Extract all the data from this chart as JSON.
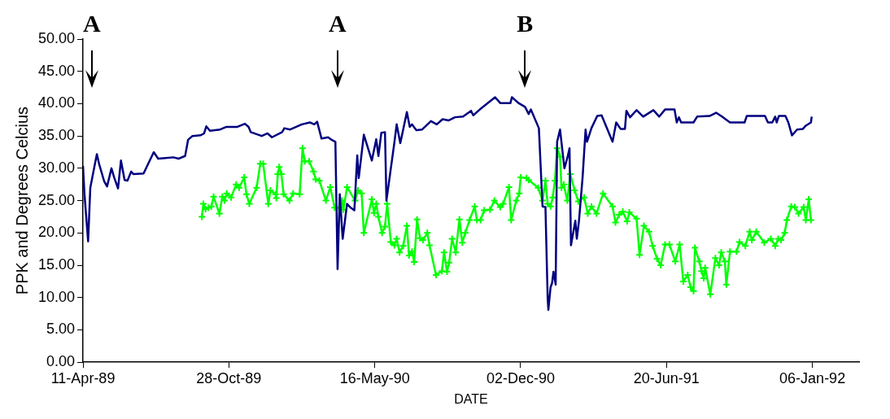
{
  "chart_data": {
    "type": "line",
    "xlabel": "DATE",
    "ylabel": "PPK and Degrees Celcius",
    "xlim": [
      "1989-04-11",
      "1992-03-10"
    ],
    "xticks": [
      {
        "value": "1989-04-11",
        "label": "11-Apr-89"
      },
      {
        "value": "1989-10-28",
        "label": "28-Oct-89"
      },
      {
        "value": "1990-05-16",
        "label": "16-May-90"
      },
      {
        "value": "1990-12-02",
        "label": "02-Dec-90"
      },
      {
        "value": "1991-06-20",
        "label": "20-Jun-91"
      },
      {
        "value": "1992-01-06",
        "label": "06-Jan-92"
      }
    ],
    "ylim": [
      0,
      50
    ],
    "yticks": [
      {
        "value": 0,
        "label": "0.00"
      },
      {
        "value": 5,
        "label": "5.00"
      },
      {
        "value": 10,
        "label": "10.00"
      },
      {
        "value": 15,
        "label": "15.00"
      },
      {
        "value": 20,
        "label": "20.00"
      },
      {
        "value": 25,
        "label": "25.00"
      },
      {
        "value": 30,
        "label": "30.00"
      },
      {
        "value": 35,
        "label": "35.00"
      },
      {
        "value": 40,
        "label": "40.00"
      },
      {
        "value": 45,
        "label": "45.00"
      },
      {
        "value": 50,
        "label": "50.00"
      }
    ],
    "legend": false,
    "grid": false,
    "ref_lines": [
      {
        "axis": "x",
        "value": "1989-04-23",
        "label": "A",
        "color": "#000000"
      },
      {
        "axis": "x",
        "value": "1990-03-26",
        "label": "A",
        "color": "#000000"
      },
      {
        "axis": "x",
        "value": "1990-12-08",
        "label": "B",
        "color": "#000000"
      }
    ],
    "series": [
      {
        "color": "#000080",
        "marker": "none",
        "x": [
          "1989-04-11",
          "1989-04-13",
          "1989-04-18",
          "1989-04-21",
          "1989-04-27",
          "1989-04-30",
          "1989-05-03",
          "1989-05-10",
          "1989-05-14",
          "1989-05-20",
          "1989-05-24",
          "1989-05-29",
          "1989-06-02",
          "1989-06-07",
          "1989-06-11",
          "1989-06-16",
          "1989-06-19",
          "1989-07-03",
          "1989-07-17",
          "1989-07-23",
          "1989-08-02",
          "1989-08-13",
          "1989-08-20",
          "1989-08-29",
          "1989-09-02",
          "1989-09-08",
          "1989-09-19",
          "1989-09-24",
          "1989-09-27",
          "1989-10-02",
          "1989-10-16",
          "1989-10-24",
          "1989-11-08",
          "1989-11-19",
          "1989-11-24",
          "1989-11-27",
          "1989-12-12",
          "1989-12-20",
          "1989-12-26",
          "1990-01-09",
          "1990-01-12",
          "1990-01-20",
          "1990-02-05",
          "1990-02-16",
          "1990-02-22",
          "1990-02-26",
          "1990-03-04",
          "1990-03-13",
          "1990-03-18",
          "1990-03-23",
          "1990-03-26",
          "1990-03-29",
          "1990-04-02",
          "1990-04-08",
          "1990-04-13",
          "1990-04-18",
          "1990-04-22",
          "1990-04-24",
          "1990-05-01",
          "1990-05-12",
          "1990-05-18",
          "1990-05-21",
          "1990-05-25",
          "1990-05-30",
          "1990-06-01",
          "1990-06-12",
          "1990-06-15",
          "1990-06-20",
          "1990-06-29",
          "1990-07-03",
          "1990-07-06",
          "1990-07-12",
          "1990-07-20",
          "1990-08-01",
          "1990-08-09",
          "1990-08-17",
          "1990-08-25",
          "1990-09-03",
          "1990-09-14",
          "1990-09-25",
          "1990-09-28",
          "1990-10-07",
          "1990-10-28",
          "1990-11-04",
          "1990-11-18",
          "1990-11-20",
          "1990-11-29",
          "1990-12-08",
          "1990-12-13",
          "1990-12-16",
          "1990-12-27",
          "1991-01-01",
          "1991-01-05",
          "1991-01-08",
          "1991-01-09",
          "1991-01-12",
          "1991-01-14",
          "1991-01-16",
          "1991-01-19",
          "1991-01-21",
          "1991-01-25",
          "1991-01-31",
          "1991-02-04",
          "1991-02-07",
          "1991-02-09",
          "1991-02-15",
          "1991-02-17",
          "1991-02-20",
          "1991-02-25",
          "1991-03-01",
          "1991-03-03",
          "1991-03-09",
          "1991-03-17",
          "1991-03-23",
          "1991-04-07",
          "1991-04-12",
          "1991-04-18",
          "1991-04-24",
          "1991-04-26",
          "1991-05-01",
          "1991-05-10",
          "1991-05-19",
          "1991-06-02",
          "1991-06-10",
          "1991-06-18",
          "1991-07-01",
          "1991-07-04",
          "1991-07-07",
          "1991-07-10",
          "1991-07-27",
          "1991-08-01",
          "1991-08-18",
          "1991-08-27",
          "1991-09-04",
          "1991-09-15",
          "1991-10-05",
          "1991-10-08",
          "1991-11-02",
          "1991-11-06",
          "1991-11-12",
          "1991-11-16",
          "1991-11-18",
          "1991-11-21",
          "1991-11-30",
          "1991-12-04",
          "1991-12-09",
          "1991-12-16",
          "1991-12-24",
          "1991-12-28",
          "1992-01-04",
          "1992-01-05"
        ],
        "values": [
          30.4,
          26,
          18.7,
          27,
          30.5,
          32.2,
          30.7,
          28,
          27.2,
          30,
          28.5,
          26.9,
          31.2,
          28.2,
          28.1,
          29.5,
          29.1,
          29.2,
          32.5,
          31.5,
          31.6,
          31.7,
          31.5,
          31.9,
          34.4,
          35,
          35.1,
          35.4,
          36.5,
          35.8,
          36,
          36.4,
          36.4,
          36.9,
          36.4,
          35.6,
          35,
          35.4,
          34.8,
          35.6,
          36.2,
          36,
          36.8,
          37.1,
          36.8,
          37.2,
          34.6,
          34.8,
          34.4,
          34.1,
          14.4,
          26,
          19.1,
          24.5,
          23.9,
          23.5,
          32,
          28.5,
          35.2,
          31.2,
          34.5,
          31.9,
          35.5,
          35.6,
          25,
          34.1,
          36.8,
          33.9,
          38.7,
          36.4,
          36.8,
          35.9,
          36,
          37.3,
          36.8,
          37.6,
          37.4,
          37.9,
          38,
          38.9,
          38.2,
          39.1,
          41,
          40.1,
          40.1,
          41,
          40.1,
          39.5,
          38.4,
          39.1,
          36.2,
          24.1,
          24,
          10,
          8.1,
          11.6,
          12.2,
          14,
          12,
          34.1,
          36,
          30,
          31.6,
          33.1,
          18.1,
          21.9,
          19.1,
          21.9,
          28.7,
          36,
          34.1,
          36.2,
          38.1,
          38.2,
          34.1,
          37.1,
          36.1,
          36.1,
          38.9,
          37.9,
          39,
          38,
          39,
          38,
          39.1,
          39.1,
          37.1,
          37.9,
          37.1,
          37.1,
          38,
          38.1,
          38.6,
          38,
          37.1,
          37.1,
          38.1,
          38.1,
          37.1,
          37.1,
          38,
          37.1,
          38.1,
          38.1,
          37.1,
          35.1,
          36,
          36.1,
          36.6,
          37.1,
          38
        ]
      },
      {
        "color": "#00ff00",
        "marker": "cross",
        "x": [
          "1989-09-21",
          "1989-09-23",
          "1989-09-26",
          "1989-09-30",
          "1989-10-04",
          "1989-10-07",
          "1989-10-15",
          "1989-10-19",
          "1989-10-22",
          "1989-10-25",
          "1989-10-31",
          "1989-11-07",
          "1989-11-11",
          "1989-11-18",
          "1989-11-21",
          "1989-11-25",
          "1989-12-05",
          "1989-12-10",
          "1989-12-14",
          "1989-12-21",
          "1989-12-24",
          "1989-12-31",
          "1990-01-01",
          "1990-01-03",
          "1990-01-05",
          "1990-01-08",
          "1990-01-11",
          "1990-01-19",
          "1990-01-24",
          "1990-02-02",
          "1990-02-06",
          "1990-02-09",
          "1990-02-15",
          "1990-02-21",
          "1990-02-24",
          "1990-03-01",
          "1990-03-10",
          "1990-03-16",
          "1990-03-22",
          "1990-03-28",
          "1990-04-01",
          "1990-04-03",
          "1990-04-08",
          "1990-04-19",
          "1990-04-23",
          "1990-04-28",
          "1990-05-01",
          "1990-05-12",
          "1990-05-15",
          "1990-05-18",
          "1990-05-21",
          "1990-05-26",
          "1990-05-30",
          "1990-06-02",
          "1990-06-07",
          "1990-06-12",
          "1990-06-15",
          "1990-06-19",
          "1990-06-24",
          "1990-06-29",
          "1990-07-02",
          "1990-07-06",
          "1990-07-09",
          "1990-07-13",
          "1990-07-17",
          "1990-07-21",
          "1990-07-27",
          "1990-07-30",
          "1990-08-08",
          "1990-08-16",
          "1990-08-19",
          "1990-08-23",
          "1990-08-26",
          "1990-08-30",
          "1990-09-04",
          "1990-09-09",
          "1990-09-13",
          "1990-09-17",
          "1990-09-23",
          "1990-09-30",
          "1990-10-03",
          "1990-10-08",
          "1990-10-13",
          "1990-10-21",
          "1990-10-27",
          "1990-11-04",
          "1990-11-08",
          "1990-11-16",
          "1990-11-19",
          "1990-11-26",
          "1990-11-30",
          "1990-12-02",
          "1990-12-10",
          "1990-12-13",
          "1990-12-26",
          "1991-01-01",
          "1991-01-05",
          "1991-01-08",
          "1991-01-12",
          "1991-01-15",
          "1991-01-18",
          "1991-01-21",
          "1991-01-25",
          "1991-01-27",
          "1991-01-30",
          "1991-02-04",
          "1991-02-08",
          "1991-02-14",
          "1991-02-19",
          "1991-02-27",
          "1991-03-04",
          "1991-03-09",
          "1991-03-16",
          "1991-03-25",
          "1991-04-07",
          "1991-04-11",
          "1991-04-16",
          "1991-04-21",
          "1991-04-27",
          "1991-04-30",
          "1991-05-10",
          "1991-05-14",
          "1991-05-20",
          "1991-05-27",
          "1991-06-01",
          "1991-06-07",
          "1991-06-12",
          "1991-06-18",
          "1991-06-24",
          "1991-07-02",
          "1991-07-08",
          "1991-07-13",
          "1991-07-19",
          "1991-07-23",
          "1991-07-27",
          "1991-07-29",
          "1991-08-04",
          "1991-08-07",
          "1991-08-10",
          "1991-08-12",
          "1991-08-19",
          "1991-08-26",
          "1991-08-31",
          "1991-09-03",
          "1991-09-08",
          "1991-09-10",
          "1991-09-15",
          "1991-09-24",
          "1991-09-28",
          "1991-10-06",
          "1991-10-12",
          "1991-10-15",
          "1991-10-21",
          "1991-11-01",
          "1991-11-10",
          "1991-11-16",
          "1991-11-20",
          "1991-11-24",
          "1991-11-29",
          "1991-12-02",
          "1991-12-08",
          "1991-12-13",
          "1991-12-18",
          "1991-12-25",
          "1991-12-28",
          "1992-01-01",
          "1992-01-04"
        ],
        "values": [
          22.5,
          24.5,
          23.7,
          23.9,
          24.1,
          25.6,
          23,
          25.6,
          25,
          26.1,
          25.5,
          27.5,
          27,
          28.6,
          26,
          24.5,
          27,
          30.7,
          30.7,
          24.5,
          26.6,
          26,
          25.4,
          29.1,
          30.2,
          29.1,
          26,
          25,
          26.1,
          26,
          33.1,
          31.1,
          31.1,
          29.5,
          28.3,
          28.1,
          25,
          27.1,
          23.9,
          23.9,
          25,
          23.6,
          27.1,
          25,
          26.6,
          26.1,
          20,
          25.2,
          23.1,
          24.5,
          22.5,
          20,
          21,
          24.5,
          18.6,
          18.1,
          19.1,
          17,
          18,
          21.1,
          16.5,
          17.1,
          15.5,
          22.1,
          19.2,
          18.9,
          20,
          18.1,
          13.5,
          14.1,
          17,
          14,
          15.4,
          19.1,
          17,
          22.1,
          18.5,
          20,
          22,
          24.1,
          22,
          22,
          23.5,
          23.6,
          25,
          24,
          24.5,
          27.1,
          22,
          25,
          26.1,
          28.6,
          28.5,
          28.2,
          27,
          25,
          28.1,
          24.5,
          24.1,
          25.5,
          28.1,
          33.1,
          31.8,
          27,
          27.5,
          25,
          29.1,
          26.6,
          24.9,
          25.5,
          23,
          24.1,
          23,
          26.1,
          24.1,
          21.6,
          22.8,
          23.3,
          21.8,
          23.2,
          22.2,
          16.6,
          21.1,
          20.2,
          18,
          16,
          15,
          18.2,
          18.2,
          15.6,
          18.2,
          12.5,
          13.5,
          11.6,
          11,
          17.7,
          15.6,
          14.1,
          13,
          14.6,
          10.5,
          16.1,
          15,
          17,
          15.6,
          12,
          17.1,
          17.1,
          18.6,
          18,
          20.2,
          18.9,
          20.2,
          18.5,
          19.1,
          18,
          19.1,
          18.9,
          20,
          22,
          24.1,
          24,
          23,
          24,
          22,
          25.2,
          22
        ]
      }
    ]
  }
}
